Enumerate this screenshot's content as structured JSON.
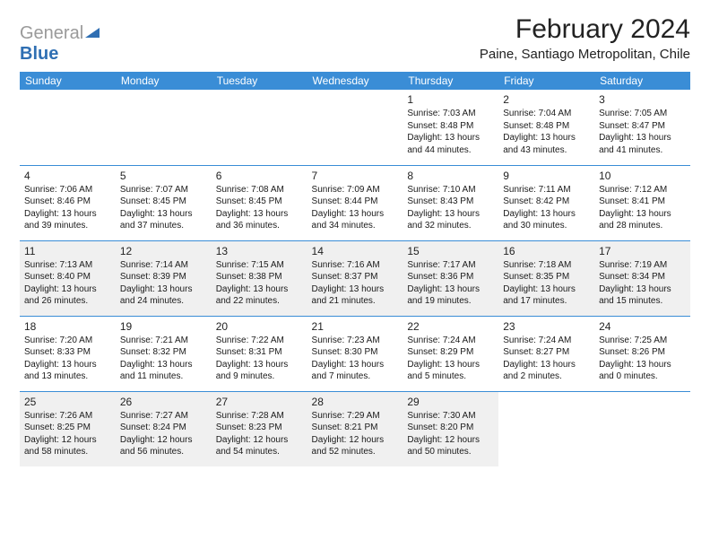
{
  "logo": {
    "word1": "General",
    "word2": "Blue"
  },
  "title": "February 2024",
  "subtitle": "Paine, Santiago Metropolitan, Chile",
  "colors": {
    "header_bg": "#3a8dd6",
    "header_text": "#ffffff",
    "shade": "#f0f0f0",
    "border": "#3a8dd6",
    "logo_gray": "#9a9a9a",
    "logo_blue": "#2f6fb3"
  },
  "day_headers": [
    "Sunday",
    "Monday",
    "Tuesday",
    "Wednesday",
    "Thursday",
    "Friday",
    "Saturday"
  ],
  "weeks": [
    {
      "shaded": false,
      "cells": [
        null,
        null,
        null,
        null,
        {
          "num": "1",
          "sunrise": "7:03 AM",
          "sunset": "8:48 PM",
          "daylight": "13 hours and 44 minutes."
        },
        {
          "num": "2",
          "sunrise": "7:04 AM",
          "sunset": "8:48 PM",
          "daylight": "13 hours and 43 minutes."
        },
        {
          "num": "3",
          "sunrise": "7:05 AM",
          "sunset": "8:47 PM",
          "daylight": "13 hours and 41 minutes."
        }
      ]
    },
    {
      "shaded": false,
      "cells": [
        {
          "num": "4",
          "sunrise": "7:06 AM",
          "sunset": "8:46 PM",
          "daylight": "13 hours and 39 minutes."
        },
        {
          "num": "5",
          "sunrise": "7:07 AM",
          "sunset": "8:45 PM",
          "daylight": "13 hours and 37 minutes."
        },
        {
          "num": "6",
          "sunrise": "7:08 AM",
          "sunset": "8:45 PM",
          "daylight": "13 hours and 36 minutes."
        },
        {
          "num": "7",
          "sunrise": "7:09 AM",
          "sunset": "8:44 PM",
          "daylight": "13 hours and 34 minutes."
        },
        {
          "num": "8",
          "sunrise": "7:10 AM",
          "sunset": "8:43 PM",
          "daylight": "13 hours and 32 minutes."
        },
        {
          "num": "9",
          "sunrise": "7:11 AM",
          "sunset": "8:42 PM",
          "daylight": "13 hours and 30 minutes."
        },
        {
          "num": "10",
          "sunrise": "7:12 AM",
          "sunset": "8:41 PM",
          "daylight": "13 hours and 28 minutes."
        }
      ]
    },
    {
      "shaded": true,
      "cells": [
        {
          "num": "11",
          "sunrise": "7:13 AM",
          "sunset": "8:40 PM",
          "daylight": "13 hours and 26 minutes."
        },
        {
          "num": "12",
          "sunrise": "7:14 AM",
          "sunset": "8:39 PM",
          "daylight": "13 hours and 24 minutes."
        },
        {
          "num": "13",
          "sunrise": "7:15 AM",
          "sunset": "8:38 PM",
          "daylight": "13 hours and 22 minutes."
        },
        {
          "num": "14",
          "sunrise": "7:16 AM",
          "sunset": "8:37 PM",
          "daylight": "13 hours and 21 minutes."
        },
        {
          "num": "15",
          "sunrise": "7:17 AM",
          "sunset": "8:36 PM",
          "daylight": "13 hours and 19 minutes."
        },
        {
          "num": "16",
          "sunrise": "7:18 AM",
          "sunset": "8:35 PM",
          "daylight": "13 hours and 17 minutes."
        },
        {
          "num": "17",
          "sunrise": "7:19 AM",
          "sunset": "8:34 PM",
          "daylight": "13 hours and 15 minutes."
        }
      ]
    },
    {
      "shaded": false,
      "cells": [
        {
          "num": "18",
          "sunrise": "7:20 AM",
          "sunset": "8:33 PM",
          "daylight": "13 hours and 13 minutes."
        },
        {
          "num": "19",
          "sunrise": "7:21 AM",
          "sunset": "8:32 PM",
          "daylight": "13 hours and 11 minutes."
        },
        {
          "num": "20",
          "sunrise": "7:22 AM",
          "sunset": "8:31 PM",
          "daylight": "13 hours and 9 minutes."
        },
        {
          "num": "21",
          "sunrise": "7:23 AM",
          "sunset": "8:30 PM",
          "daylight": "13 hours and 7 minutes."
        },
        {
          "num": "22",
          "sunrise": "7:24 AM",
          "sunset": "8:29 PM",
          "daylight": "13 hours and 5 minutes."
        },
        {
          "num": "23",
          "sunrise": "7:24 AM",
          "sunset": "8:27 PM",
          "daylight": "13 hours and 2 minutes."
        },
        {
          "num": "24",
          "sunrise": "7:25 AM",
          "sunset": "8:26 PM",
          "daylight": "13 hours and 0 minutes."
        }
      ]
    },
    {
      "shaded": true,
      "cells": [
        {
          "num": "25",
          "sunrise": "7:26 AM",
          "sunset": "8:25 PM",
          "daylight": "12 hours and 58 minutes."
        },
        {
          "num": "26",
          "sunrise": "7:27 AM",
          "sunset": "8:24 PM",
          "daylight": "12 hours and 56 minutes."
        },
        {
          "num": "27",
          "sunrise": "7:28 AM",
          "sunset": "8:23 PM",
          "daylight": "12 hours and 54 minutes."
        },
        {
          "num": "28",
          "sunrise": "7:29 AM",
          "sunset": "8:21 PM",
          "daylight": "12 hours and 52 minutes."
        },
        {
          "num": "29",
          "sunrise": "7:30 AM",
          "sunset": "8:20 PM",
          "daylight": "12 hours and 50 minutes."
        },
        null,
        null
      ]
    }
  ],
  "labels": {
    "sunrise": "Sunrise: ",
    "sunset": "Sunset: ",
    "daylight": "Daylight: "
  }
}
